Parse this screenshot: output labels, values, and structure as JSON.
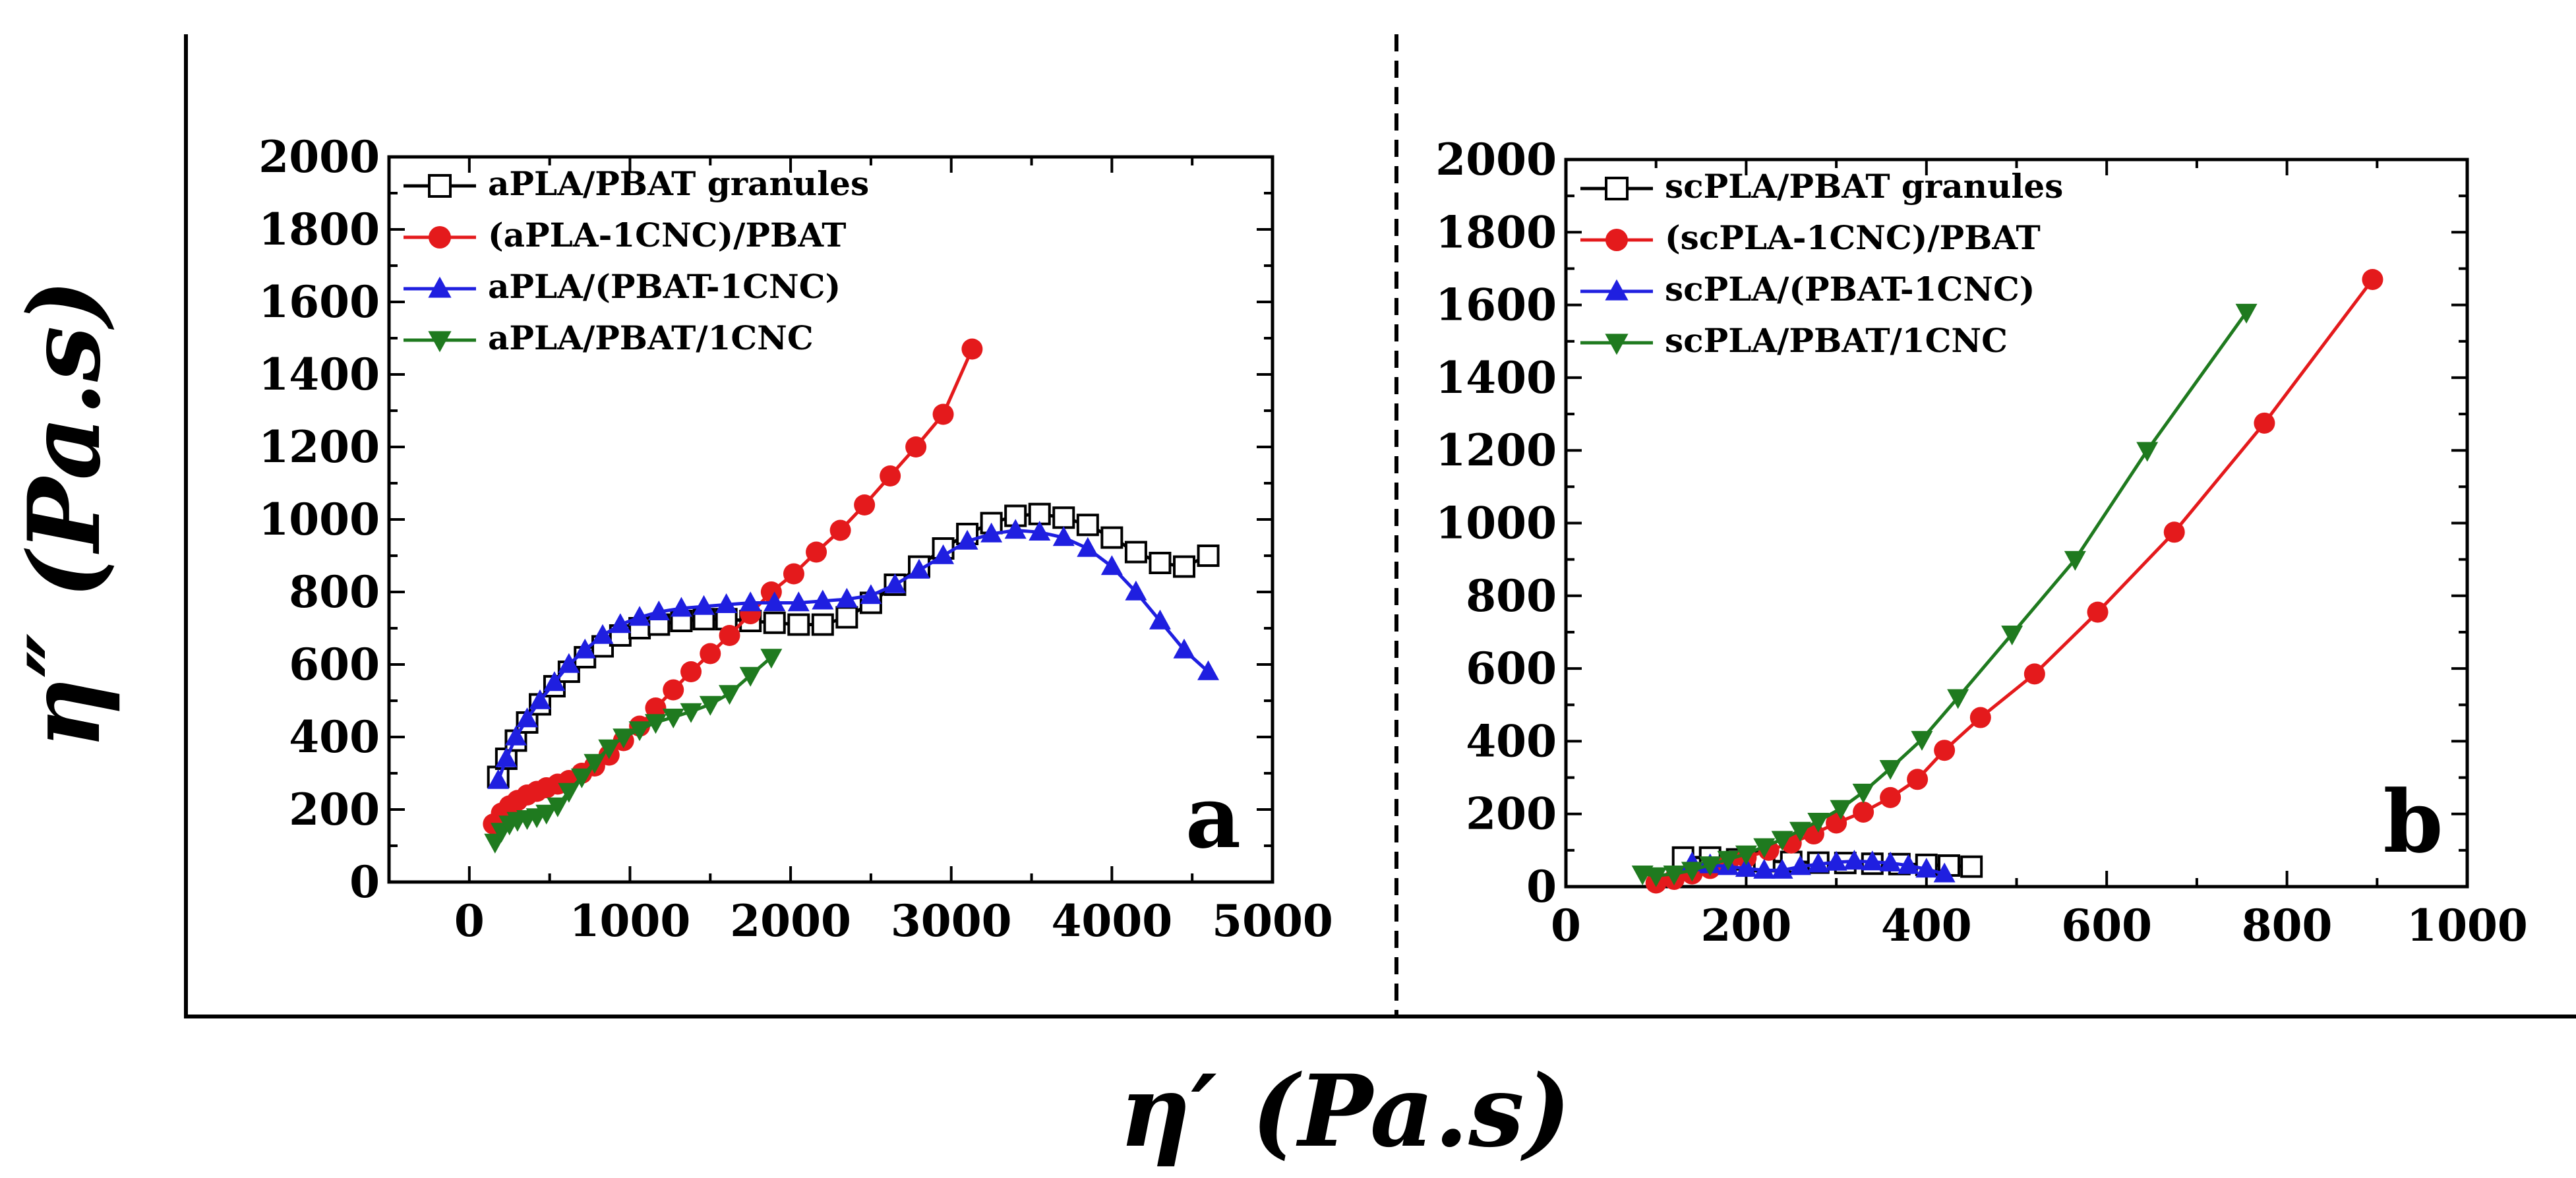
{
  "figure": {
    "xlabel": "η′ (Pa.s)",
    "ylabel": "η″ (Pa.s)"
  },
  "chart_data": [
    {
      "type": "line",
      "panel_label": "a",
      "xlim": [
        -500,
        5000
      ],
      "ylim": [
        0,
        2000
      ],
      "xticks": [
        0,
        1000,
        2000,
        3000,
        4000,
        5000
      ],
      "yticks": [
        0,
        200,
        400,
        600,
        800,
        1000,
        1200,
        1400,
        1600,
        1800,
        2000
      ],
      "legend_position": "top-left",
      "series": [
        {
          "name": "aPLA/PBAT granules",
          "marker": "square-open",
          "color": "#000000",
          "x": [
            180,
            230,
            290,
            360,
            440,
            530,
            620,
            720,
            830,
            940,
            1060,
            1180,
            1320,
            1460,
            1600,
            1750,
            1900,
            2050,
            2200,
            2350,
            2500,
            2650,
            2800,
            2950,
            3100,
            3250,
            3400,
            3550,
            3700,
            3850,
            4000,
            4150,
            4300,
            4450,
            4600
          ],
          "y": [
            290,
            340,
            390,
            440,
            490,
            540,
            580,
            620,
            650,
            680,
            700,
            710,
            720,
            725,
            725,
            720,
            715,
            710,
            710,
            730,
            770,
            820,
            870,
            920,
            960,
            990,
            1010,
            1015,
            1005,
            985,
            950,
            910,
            880,
            870,
            900
          ]
        },
        {
          "name": "(aPLA-1CNC)/PBAT",
          "marker": "circle",
          "color": "#e41a1c",
          "x": [
            150,
            200,
            250,
            300,
            360,
            420,
            480,
            550,
            620,
            700,
            780,
            870,
            960,
            1060,
            1160,
            1270,
            1380,
            1500,
            1620,
            1750,
            1880,
            2020,
            2160,
            2310,
            2460,
            2620,
            2780,
            2950,
            3130
          ],
          "y": [
            160,
            190,
            210,
            225,
            240,
            250,
            260,
            270,
            280,
            300,
            320,
            350,
            390,
            430,
            480,
            530,
            580,
            630,
            680,
            740,
            800,
            850,
            910,
            970,
            1040,
            1120,
            1200,
            1290,
            1470
          ]
        },
        {
          "name": "aPLA/(PBAT-1CNC)",
          "marker": "triangle-up",
          "color": "#1f1fe0",
          "x": [
            180,
            230,
            290,
            360,
            440,
            530,
            620,
            720,
            830,
            940,
            1060,
            1180,
            1320,
            1460,
            1600,
            1750,
            1900,
            2050,
            2200,
            2350,
            2500,
            2650,
            2800,
            2950,
            3100,
            3250,
            3400,
            3550,
            3700,
            3850,
            4000,
            4150,
            4300,
            4450,
            4600
          ],
          "y": [
            280,
            340,
            400,
            450,
            500,
            550,
            600,
            640,
            680,
            710,
            730,
            745,
            755,
            760,
            765,
            770,
            770,
            770,
            775,
            780,
            790,
            820,
            860,
            900,
            940,
            960,
            970,
            965,
            950,
            920,
            870,
            800,
            720,
            640,
            580
          ]
        },
        {
          "name": "aPLA/PBAT/1CNC",
          "marker": "triangle-down",
          "color": "#1f7a1f",
          "x": [
            160,
            200,
            250,
            300,
            360,
            420,
            480,
            550,
            620,
            700,
            780,
            870,
            960,
            1060,
            1160,
            1270,
            1380,
            1500,
            1620,
            1750,
            1880
          ],
          "y": [
            110,
            140,
            160,
            170,
            175,
            180,
            190,
            210,
            250,
            290,
            330,
            370,
            400,
            420,
            440,
            455,
            470,
            490,
            520,
            570,
            620
          ]
        }
      ]
    },
    {
      "type": "line",
      "panel_label": "b",
      "xlim": [
        0,
        1000
      ],
      "ylim": [
        0,
        2000
      ],
      "xticks": [
        0,
        200,
        400,
        600,
        800,
        1000
      ],
      "yticks": [
        0,
        200,
        400,
        600,
        800,
        1000,
        1200,
        1400,
        1600,
        1800,
        2000
      ],
      "legend_position": "top-left",
      "series": [
        {
          "name": "scPLA/PBAT granules",
          "marker": "square-open",
          "color": "#000000",
          "x": [
            130,
            160,
            190,
            220,
            250,
            280,
            310,
            340,
            370,
            400,
            425,
            450
          ],
          "y": [
            80,
            80,
            75,
            70,
            68,
            66,
            65,
            63,
            62,
            60,
            58,
            55
          ]
        },
        {
          "name": "(scPLA-1CNC)/PBAT",
          "marker": "circle",
          "color": "#e41a1c",
          "x": [
            100,
            120,
            140,
            160,
            180,
            200,
            225,
            250,
            275,
            300,
            330,
            360,
            390,
            420,
            460,
            520,
            590,
            675,
            775,
            895
          ],
          "y": [
            10,
            20,
            35,
            50,
            65,
            80,
            100,
            120,
            145,
            175,
            205,
            245,
            295,
            375,
            465,
            585,
            755,
            975,
            1275,
            1670
          ]
        },
        {
          "name": "scPLA/(PBAT-1CNC)",
          "marker": "triangle-up",
          "color": "#1f1fe0",
          "x": [
            140,
            160,
            180,
            200,
            220,
            240,
            260,
            280,
            300,
            320,
            340,
            360,
            380,
            400,
            420
          ],
          "y": [
            65,
            60,
            55,
            50,
            45,
            45,
            55,
            62,
            67,
            70,
            68,
            65,
            58,
            48,
            35
          ]
        },
        {
          "name": "scPLA/PBAT/1CNC",
          "marker": "triangle-down",
          "color": "#1f7a1f",
          "x": [
            85,
            100,
            120,
            140,
            160,
            180,
            200,
            220,
            240,
            260,
            280,
            305,
            330,
            360,
            395,
            435,
            495,
            565,
            645,
            755
          ],
          "y": [
            35,
            30,
            35,
            45,
            60,
            75,
            90,
            110,
            130,
            155,
            180,
            215,
            260,
            325,
            405,
            520,
            695,
            900,
            1200,
            1580
          ]
        }
      ]
    }
  ]
}
